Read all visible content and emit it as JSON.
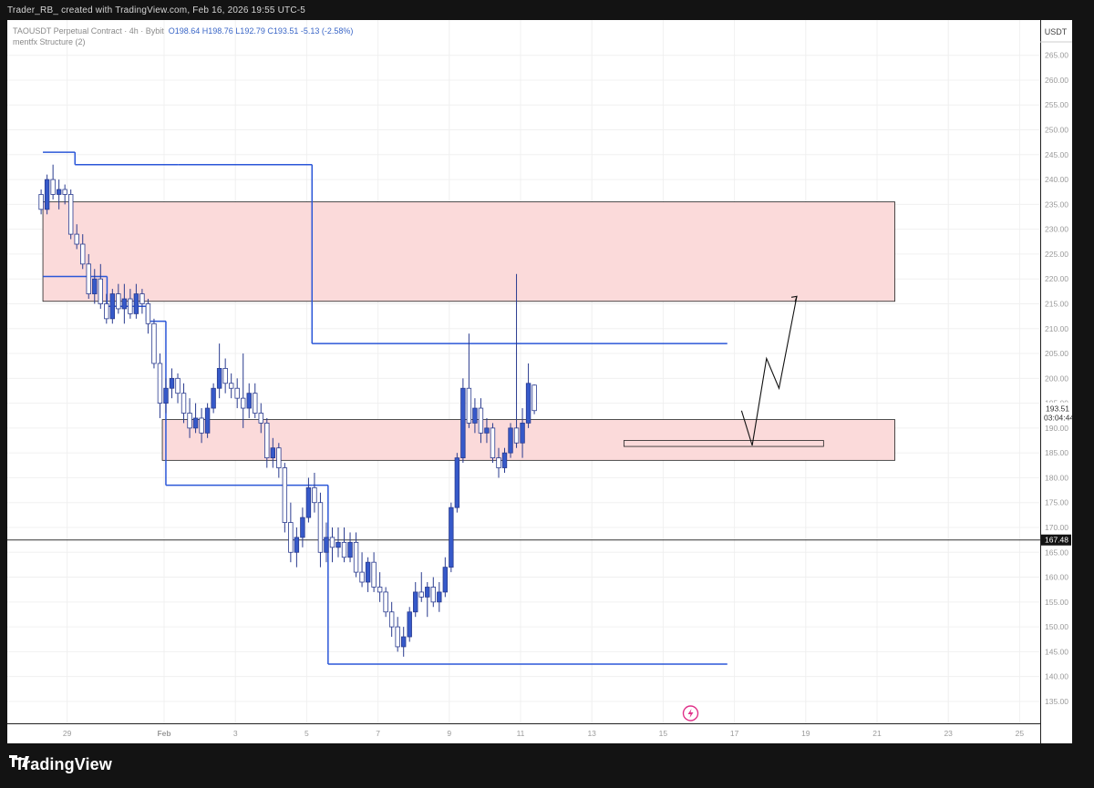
{
  "header": {
    "attribution": "Trader_RB_ created with TradingView.com, Feb 16, 2026 19:55 UTC-5"
  },
  "legend": {
    "symbol_line": "TAOUSDT Perpetual Contract · 4h · Bybit",
    "ohlc": "O198.64  H198.76  L192.79  C193.51  -5.13 (-2.58%)",
    "indicator": "mentfx Structure (2)"
  },
  "branding": {
    "name": "TradingView"
  },
  "colors": {
    "bull_candle": "#3659c9",
    "bear_candle_fill": "#ffffff",
    "candle_outline": "#2a3b8f",
    "structure_line": "#2b57d8",
    "zone_fill": "#fbdada",
    "zone_border": "#222222",
    "grid": "#f0f0f0",
    "axis_text": "#9a9a9a"
  },
  "chart_data": {
    "type": "candlestick",
    "currency_label": "USDT",
    "ylim": [
      130.5,
      272
    ],
    "y_ticks": [
      "135.00",
      "140.00",
      "145.00",
      "150.00",
      "155.00",
      "160.00",
      "165.00",
      "170.00",
      "175.00",
      "180.00",
      "185.00",
      "190.00",
      "195.00",
      "200.00",
      "205.00",
      "210.00",
      "215.00",
      "220.00",
      "225.00",
      "230.00",
      "235.00",
      "240.00",
      "245.00",
      "250.00",
      "255.00",
      "260.00",
      "265.00"
    ],
    "x_ticks": [
      {
        "label": "29",
        "day": -2.72
      },
      {
        "label": "Feb",
        "day": 0
      },
      {
        "label": "3",
        "day": 2
      },
      {
        "label": "5",
        "day": 4
      },
      {
        "label": "7",
        "day": 6
      },
      {
        "label": "9",
        "day": 8
      },
      {
        "label": "11",
        "day": 10
      },
      {
        "label": "13",
        "day": 12
      },
      {
        "label": "15",
        "day": 14
      },
      {
        "label": "17",
        "day": 16
      },
      {
        "label": "19",
        "day": 18
      },
      {
        "label": "21",
        "day": 20
      },
      {
        "label": "23",
        "day": 22
      },
      {
        "label": "25",
        "day": 24
      }
    ],
    "last_price": {
      "value": 193.51,
      "label": "193.51",
      "countdown": "03:04:44"
    },
    "level_line": {
      "value": 167.48,
      "label": "167.48"
    },
    "series": [
      {
        "name": "TAOUSDT",
        "ohlc": [
          [
            237,
            238,
            233,
            234
          ],
          [
            234,
            241,
            233,
            240
          ],
          [
            240,
            243,
            236,
            237
          ],
          [
            237,
            240,
            234,
            238
          ],
          [
            238,
            239,
            235,
            237
          ],
          [
            237,
            238,
            228,
            229
          ],
          [
            229,
            231,
            226,
            227
          ],
          [
            227,
            229,
            222,
            223
          ],
          [
            223,
            225,
            216,
            217
          ],
          [
            217,
            222,
            215,
            220
          ],
          [
            220,
            223,
            214,
            215
          ],
          [
            215,
            217,
            211,
            212
          ],
          [
            212,
            218,
            211,
            217
          ],
          [
            217,
            219,
            213,
            214
          ],
          [
            214,
            219,
            211,
            216
          ],
          [
            216,
            218,
            212,
            213
          ],
          [
            213,
            219,
            212,
            217
          ],
          [
            217,
            218,
            213,
            215
          ],
          [
            215,
            216,
            209,
            211
          ],
          [
            211,
            212,
            202,
            203
          ],
          [
            203,
            205,
            192,
            195
          ],
          [
            195,
            200,
            193,
            198
          ],
          [
            198,
            202,
            196,
            200
          ],
          [
            200,
            201,
            195,
            197
          ],
          [
            197,
            199,
            191,
            193
          ],
          [
            193,
            196,
            188,
            190
          ],
          [
            190,
            195,
            189,
            192
          ],
          [
            192,
            194,
            187,
            189
          ],
          [
            189,
            195,
            188,
            194
          ],
          [
            194,
            199,
            193,
            198
          ],
          [
            198,
            207,
            196,
            202
          ],
          [
            202,
            204,
            197,
            199
          ],
          [
            199,
            201,
            196,
            198
          ],
          [
            198,
            200,
            194,
            196
          ],
          [
            196,
            205,
            190,
            194
          ],
          [
            194,
            199,
            192,
            197
          ],
          [
            197,
            199,
            192,
            193
          ],
          [
            193,
            195,
            189,
            191
          ],
          [
            191,
            192,
            182,
            184
          ],
          [
            184,
            188,
            182,
            186
          ],
          [
            186,
            187,
            180,
            182
          ],
          [
            182,
            183,
            169,
            171
          ],
          [
            171,
            175,
            163,
            165
          ],
          [
            165,
            170,
            162,
            168
          ],
          [
            168,
            174,
            166,
            172
          ],
          [
            172,
            180,
            171,
            178
          ],
          [
            178,
            181,
            173,
            175
          ],
          [
            175,
            177,
            162,
            165
          ],
          [
            165,
            171,
            163,
            168
          ],
          [
            168,
            170,
            163,
            166
          ],
          [
            166,
            170,
            164,
            167
          ],
          [
            167,
            170,
            163,
            164
          ],
          [
            164,
            169,
            163,
            167
          ],
          [
            167,
            169,
            160,
            161
          ],
          [
            161,
            165,
            158,
            159
          ],
          [
            159,
            164,
            157,
            163
          ],
          [
            163,
            165,
            157,
            158
          ],
          [
            158,
            161,
            155,
            157
          ],
          [
            157,
            158,
            152,
            153
          ],
          [
            153,
            155,
            148,
            150
          ],
          [
            150,
            152,
            145,
            146
          ],
          [
            146,
            150,
            144,
            148
          ],
          [
            148,
            154,
            147,
            153
          ],
          [
            153,
            159,
            152,
            157
          ],
          [
            157,
            161,
            155,
            156
          ],
          [
            156,
            159,
            152,
            158
          ],
          [
            158,
            160,
            154,
            155
          ],
          [
            155,
            159,
            153,
            157
          ],
          [
            157,
            164,
            156,
            162
          ],
          [
            162,
            175,
            161,
            174
          ],
          [
            174,
            185,
            173,
            184
          ],
          [
            184,
            200,
            183,
            198
          ],
          [
            198,
            209,
            190,
            191
          ],
          [
            191,
            196,
            189,
            194
          ],
          [
            194,
            196,
            187,
            189
          ],
          [
            189,
            192,
            187,
            190
          ],
          [
            190,
            191,
            183,
            184
          ],
          [
            184,
            186,
            180,
            182
          ],
          [
            182,
            186,
            181,
            185
          ],
          [
            185,
            191,
            184,
            190
          ],
          [
            190,
            221,
            186,
            187
          ],
          [
            187,
            194,
            184,
            191
          ],
          [
            191,
            203,
            190,
            199
          ],
          [
            198.64,
            198.76,
            192.79,
            193.51
          ]
        ]
      }
    ],
    "structure_lines": [
      {
        "from_day": -3.4,
        "to_day": -2.5,
        "value": 245.5
      },
      {
        "from_day": -2.5,
        "to_day": 0.4,
        "value": 243
      },
      {
        "from_day": 0.4,
        "to_day": 4.15,
        "value": 243
      },
      {
        "from_day": 4.15,
        "to_day": 15.8,
        "value": 207
      },
      {
        "from_day": -3.4,
        "to_day": -1.6,
        "value": 220.5
      },
      {
        "from_day": -1.6,
        "to_day": -0.5,
        "value": 214.5
      },
      {
        "from_day": -0.5,
        "to_day": -0.45,
        "value": 211.5
      },
      {
        "from_day": -0.45,
        "to_day": 0.05,
        "value": 211.5
      },
      {
        "from_day": 0.05,
        "to_day": 4.15,
        "value": 178.5
      },
      {
        "from_day": 4.15,
        "to_day": 4.6,
        "value": 178.5
      },
      {
        "from_day": 4.6,
        "to_day": 15.8,
        "value": 142.5
      }
    ],
    "zones": [
      {
        "from_day": -3.4,
        "to_day": 20.5,
        "low": 215.5,
        "high": 235.5
      },
      {
        "from_day": -0.05,
        "to_day": 20.5,
        "low": 183.5,
        "high": 191.7
      },
      {
        "from_day": 12.9,
        "to_day": 18.5,
        "low": 186.3,
        "high": 187.5
      }
    ],
    "projection_path": [
      [
        16.2,
        193.5
      ],
      [
        16.5,
        186.5
      ],
      [
        16.9,
        204
      ],
      [
        17.25,
        198
      ],
      [
        17.75,
        216.5
      ]
    ]
  }
}
